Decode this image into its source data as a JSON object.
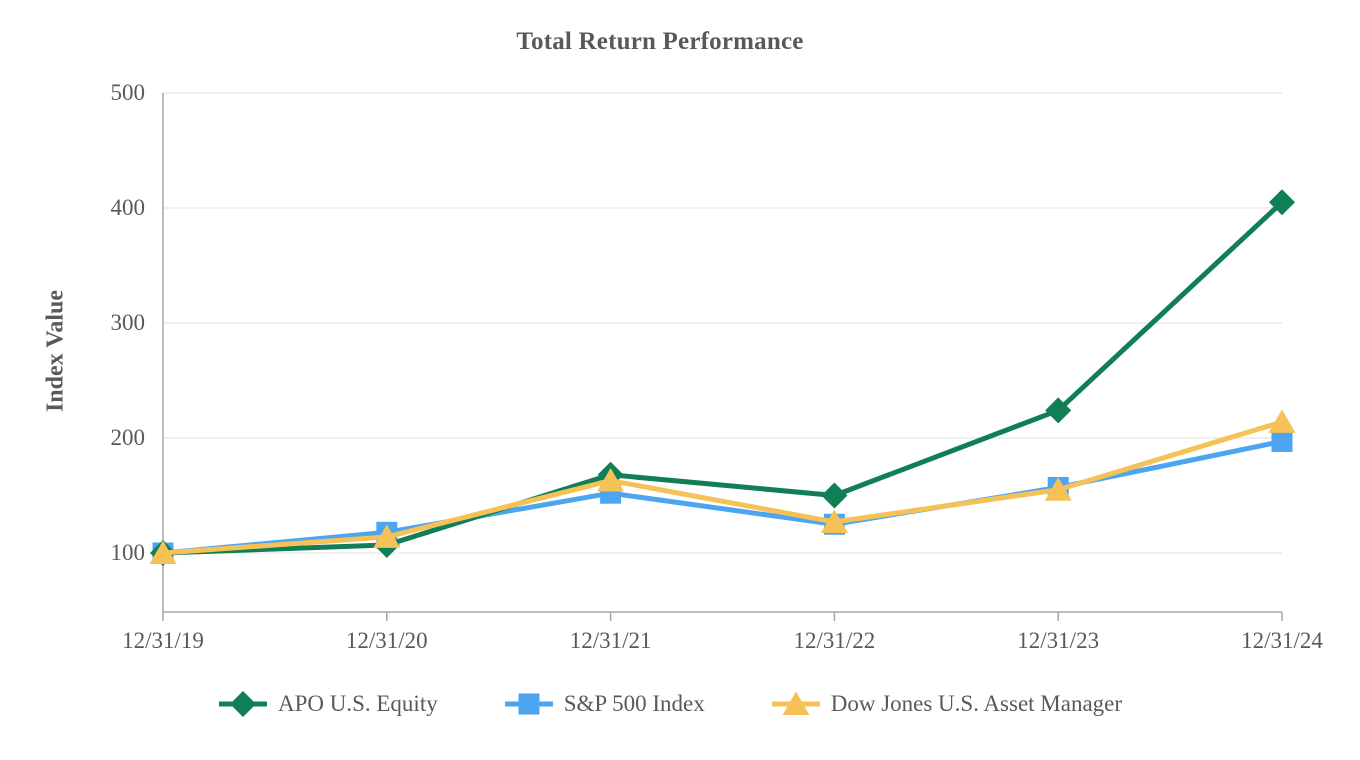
{
  "chart_data": {
    "type": "line",
    "title": "Total Return Performance",
    "ylabel": "Index Value",
    "xlabel": "",
    "categories": [
      "12/31/19",
      "12/31/20",
      "12/31/21",
      "12/31/22",
      "12/31/23",
      "12/31/24"
    ],
    "series": [
      {
        "name": "APO U.S. Equity",
        "marker": "diamond",
        "color": "#107F55",
        "values": [
          100,
          107,
          168,
          150,
          224,
          405
        ]
      },
      {
        "name": "S&P 500 Index",
        "marker": "square",
        "color": "#4CA5F0",
        "values": [
          100,
          118,
          152,
          125,
          157,
          197
        ]
      },
      {
        "name": "Dow Jones U.S. Asset Manager",
        "marker": "triangle",
        "color": "#F6C258",
        "values": [
          100,
          114,
          163,
          127,
          155,
          214
        ]
      }
    ],
    "y_ticks": [
      100,
      200,
      300,
      400,
      500
    ],
    "ylim": [
      50,
      500
    ],
    "grid": true,
    "legend_position": "bottom",
    "colors": {
      "text": "#595959",
      "axis_line": "#A6A6A6",
      "gridline": "#E8E8E8",
      "background": "#FFFFFF"
    }
  }
}
